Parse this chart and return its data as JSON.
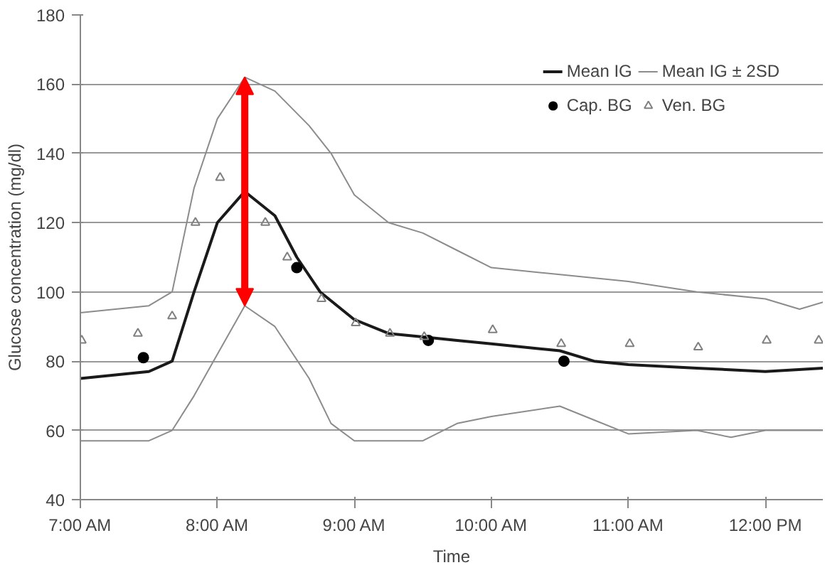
{
  "chart_data": {
    "type": "line",
    "xlabel": "Time",
    "ylabel": "Glucose concentration (mg/dl)",
    "xlim": [
      7,
      12.42
    ],
    "ylim": [
      40,
      180
    ],
    "xticks": [
      {
        "value": 7,
        "label": "7:00 AM"
      },
      {
        "value": 8,
        "label": "8:00 AM"
      },
      {
        "value": 9,
        "label": "9:00 AM"
      },
      {
        "value": 10,
        "label": "10:00 AM"
      },
      {
        "value": 11,
        "label": "11:00 AM"
      },
      {
        "value": 12,
        "label": "12:00 PM"
      }
    ],
    "yticks": [
      40,
      60,
      80,
      100,
      120,
      140,
      160,
      180
    ],
    "grid": "y",
    "legend": "top right",
    "series": [
      {
        "name": "Mean IG",
        "color": "#1a1a1a",
        "marker": "none",
        "x": [
          7,
          7.5,
          7.67,
          7.83,
          8,
          8.2,
          8.42,
          8.58,
          8.75,
          9,
          9.25,
          9.5,
          9.75,
          10,
          10.5,
          10.75,
          11,
          11.5,
          12,
          12.42
        ],
        "values": [
          75,
          77,
          80,
          100,
          120,
          129,
          122,
          110,
          100,
          92,
          88,
          87,
          86,
          85,
          83,
          80,
          79,
          78,
          77,
          78
        ]
      },
      {
        "name": "Mean IG ± 2SD",
        "color": "#8c8c8c",
        "marker": "none",
        "x": [
          7,
          7.5,
          7.67,
          7.83,
          8,
          8.2,
          8.42,
          8.67,
          8.83,
          9,
          9.25,
          9.5,
          9.75,
          10,
          10.5,
          11,
          11.5,
          12,
          12.25,
          12.42
        ],
        "values": [
          94,
          96,
          100,
          130,
          150,
          162,
          158,
          148,
          140,
          128,
          120,
          117,
          112,
          107,
          105,
          103,
          100,
          98,
          95,
          97
        ]
      },
      {
        "color": "#8c8c8c",
        "marker": "none",
        "x": [
          7,
          7.5,
          7.67,
          7.83,
          8,
          8.2,
          8.42,
          8.67,
          8.83,
          9,
          9.5,
          9.75,
          10,
          10.5,
          10.75,
          11,
          11.5,
          11.75,
          12,
          12.42
        ],
        "values": [
          57,
          57,
          60,
          70,
          82,
          96,
          90,
          75,
          62,
          57,
          57,
          62,
          64,
          67,
          63,
          59,
          60,
          58,
          60,
          60
        ]
      },
      {
        "name": "Cap. BG",
        "type": "scatter",
        "color": "#000000",
        "marker": "circle",
        "x": [
          7.46,
          8.58,
          9.54,
          10.53
        ],
        "values": [
          81,
          107,
          86,
          80
        ]
      },
      {
        "name": "Ven. BG",
        "type": "scatter",
        "color": "#808080",
        "marker": "triangle",
        "x": [
          7.01,
          7.42,
          7.67,
          7.84,
          8.02,
          8.35,
          8.51,
          8.76,
          9.01,
          9.26,
          9.51,
          10.01,
          10.51,
          11.01,
          11.51,
          12.01,
          12.39
        ],
        "values": [
          86,
          88,
          93,
          120,
          133,
          120,
          110,
          98,
          91,
          88,
          87,
          89,
          85,
          85,
          84,
          86,
          86
        ]
      }
    ]
  }
}
